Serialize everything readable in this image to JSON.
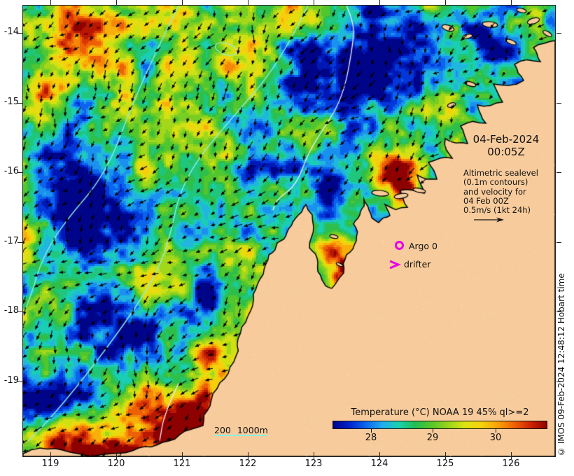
{
  "map": {
    "date_line1": "04-Feb-2024",
    "date_line2": "00:05Z",
    "note_lines": [
      "Altimetric sealevel",
      "(0.1m contours)",
      "and velocity for",
      "04 Feb 00Z",
      "0.5m/s (1kt 24h)"
    ],
    "argo_label": "Argo 0",
    "drifter_label": "drifter",
    "depth_labels": [
      "200",
      "1000m"
    ],
    "credit": "© IMOS 09-Feb-2024 12:48:12 Hobart time"
  },
  "axes": {
    "lon_ticks": [
      119,
      120,
      121,
      122,
      123,
      124,
      125,
      126
    ],
    "lat_ticks": [
      "-14",
      "-15",
      "-16",
      "-17",
      "-18",
      "-19"
    ]
  },
  "colorbar": {
    "title": "Temperature (°C) NOAA 19 45% ql>=2",
    "ticks": [
      28,
      29,
      30
    ],
    "gradient": [
      "#000488",
      "#0023cf",
      "#0b67ef",
      "#24adee",
      "#19d2ad",
      "#23bd52",
      "#58c729",
      "#99d51c",
      "#dce410",
      "#f6d30c",
      "#f8a309",
      "#f06305",
      "#cf2503",
      "#8e0101"
    ]
  },
  "colors": {
    "land": "#f7cb9b",
    "land_speckle": "#fddcae",
    "coastline": "#000000",
    "marker_magenta": "#e800e8",
    "bathy_cyan": "#8cefe2",
    "sealevel_white": "#f0f0fa",
    "text": "#111111"
  }
}
